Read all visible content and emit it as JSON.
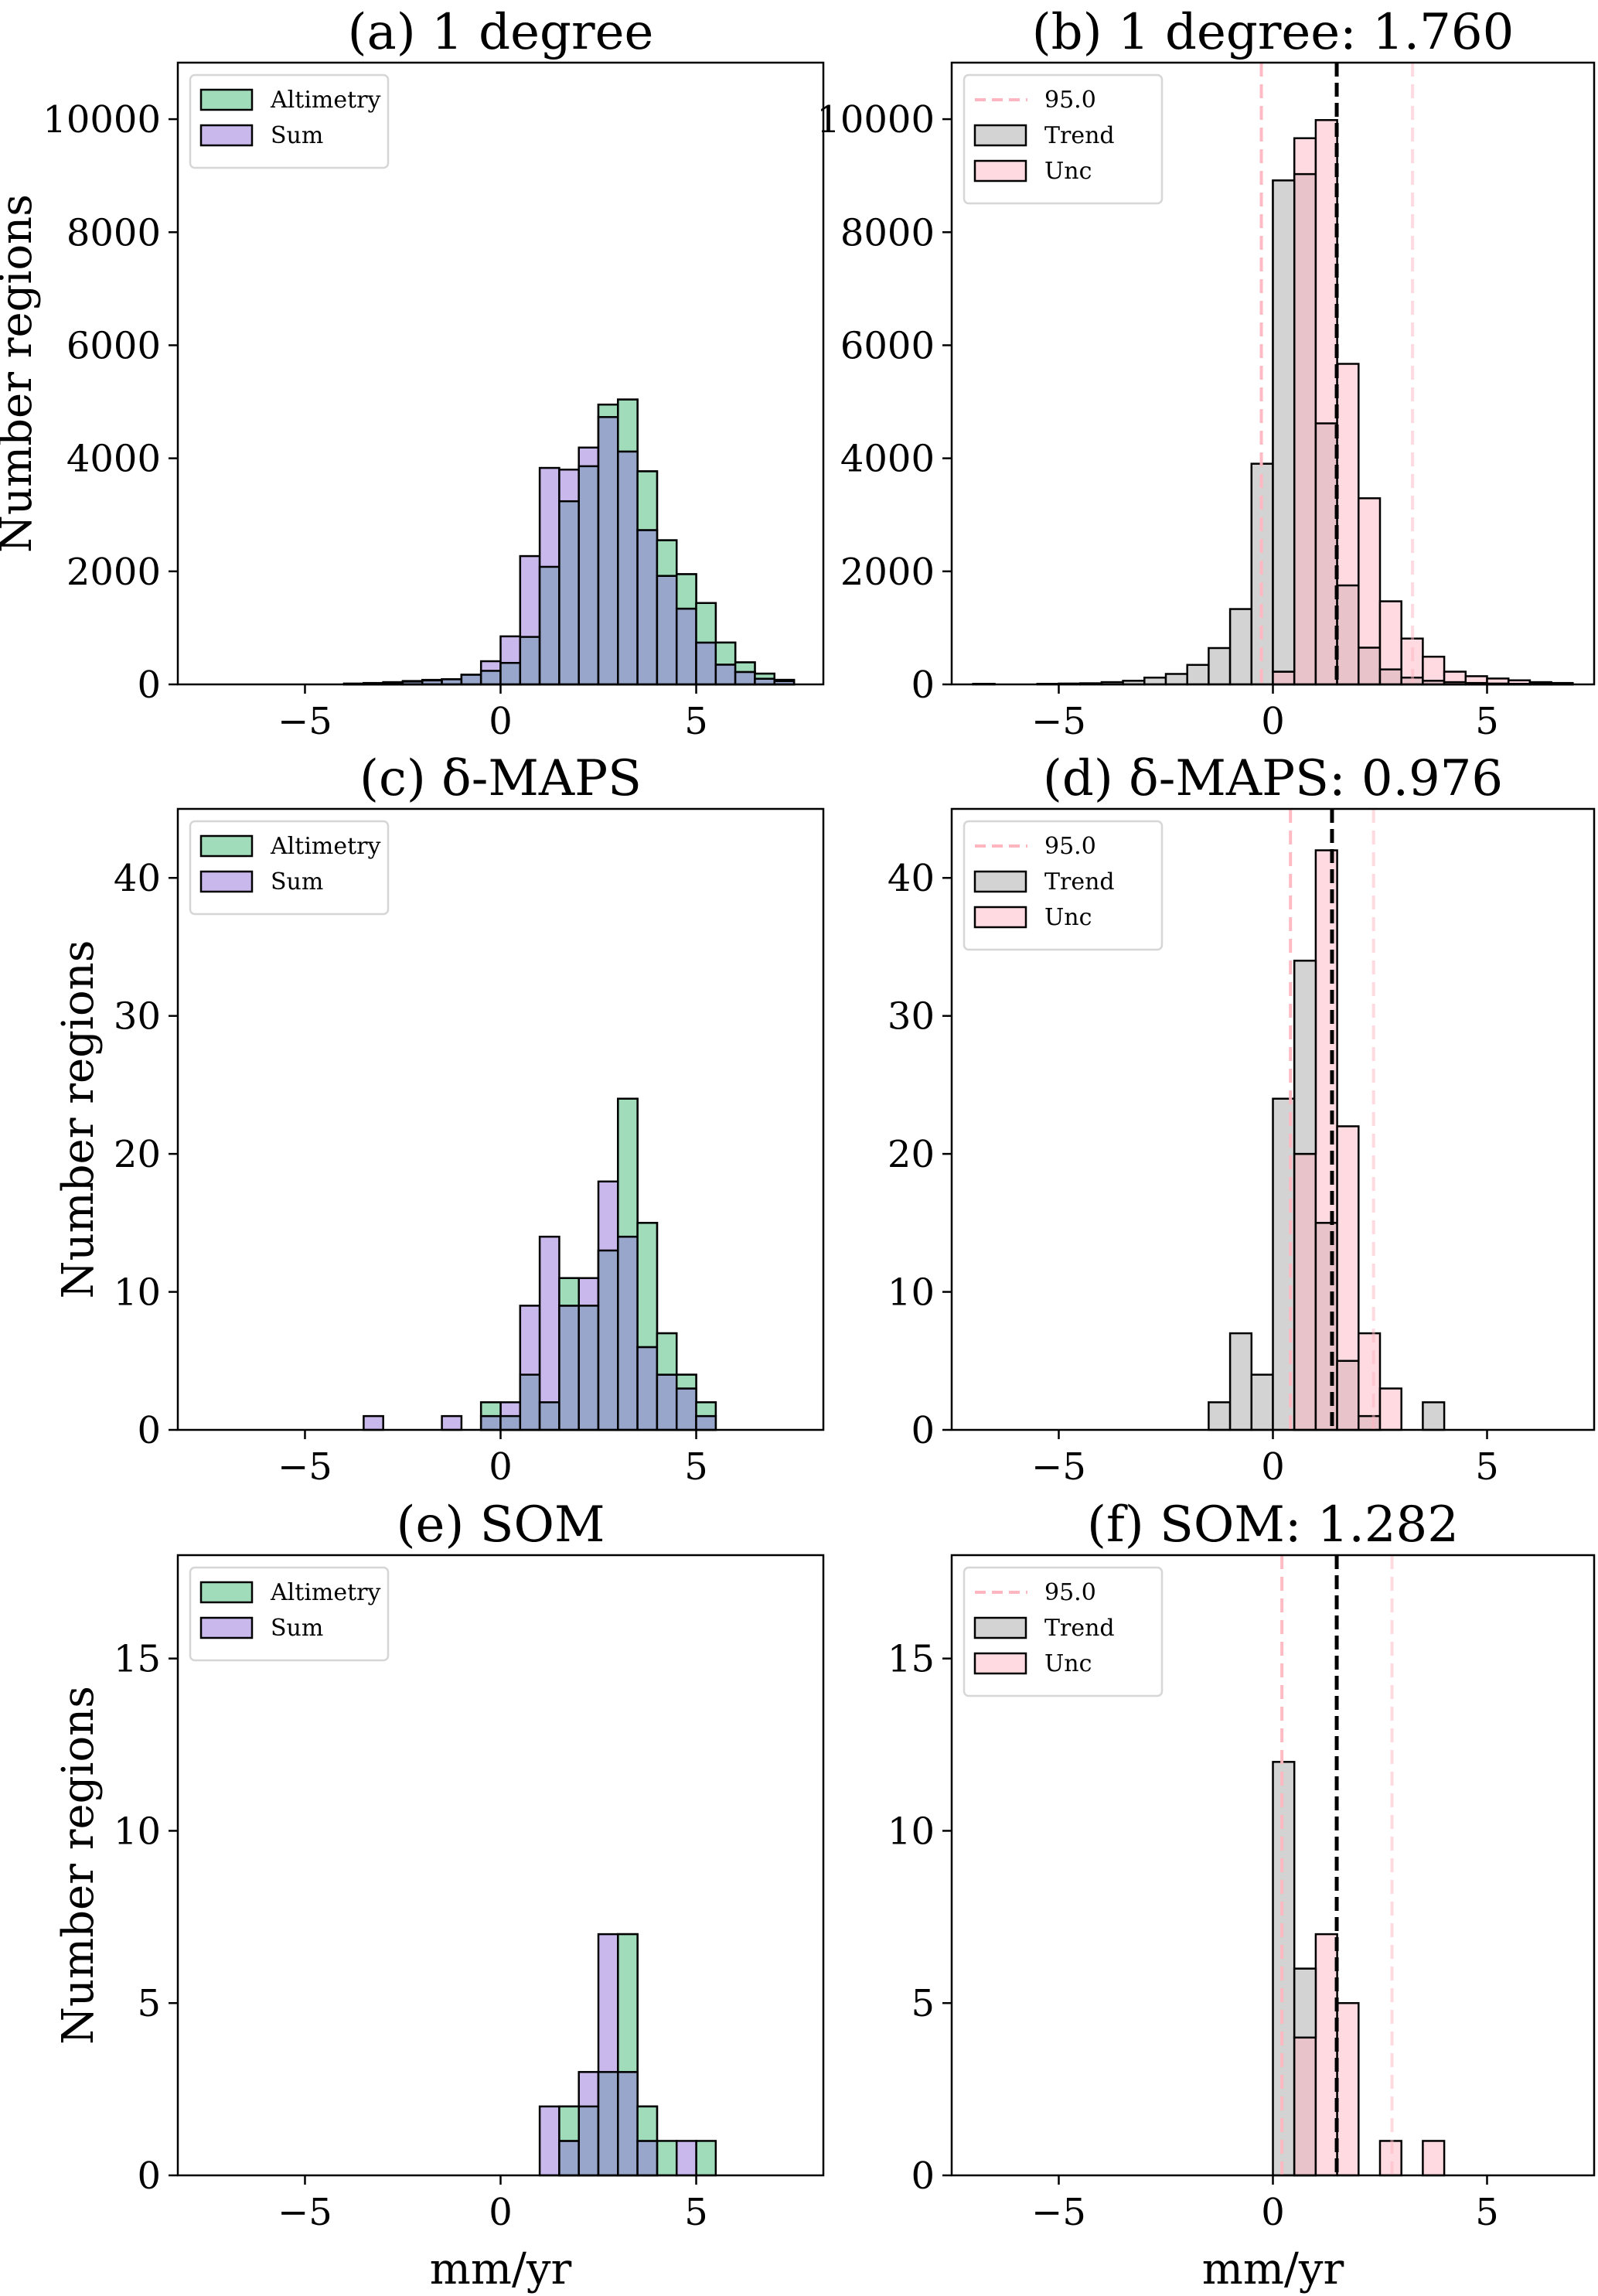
{
  "figure": {
    "colors": {
      "altimetry": "#a0dcb9",
      "sum": "#c9b8ec",
      "overlap_alt_sum": "#98a6cb",
      "trend": "#d3d3d3",
      "unc": "#ffdbe1",
      "overlap_trend_unc": "#e8c4ca",
      "ci_line": "#ffb6c1",
      "mean_line": "#000000",
      "edge": "#000000"
    }
  },
  "chart_data": [
    {
      "id": "a",
      "type": "bar",
      "subtype": "overlapping-histogram",
      "title": "(a)  1 degree",
      "xlabel": "",
      "ylabel": "Number regions",
      "xlim": [
        -8.25,
        8.25
      ],
      "ylim": [
        0,
        11000
      ],
      "xticks": [
        -5,
        0,
        5
      ],
      "xtick_labels": [
        "−5",
        "0",
        "5"
      ],
      "yticks": [
        0,
        2000,
        4000,
        6000,
        8000,
        10000
      ],
      "ytick_labels": [
        "0",
        "2000",
        "4000",
        "6000",
        "8000",
        "10000"
      ],
      "bin_width": 0.5,
      "grid": false,
      "legend": {
        "placement": "top-left",
        "entries": [
          {
            "label": "Altimetry",
            "kind": "patch",
            "color_key": "altimetry"
          },
          {
            "label": "Sum",
            "kind": "patch",
            "color_key": "sum"
          }
        ]
      },
      "series": [
        {
          "name": "Altimetry",
          "color_key": "altimetry",
          "bin_starts": [
            -4.0,
            -3.5,
            -3.0,
            -2.5,
            -2.0,
            -1.5,
            -1.0,
            -0.5,
            0.0,
            0.5,
            1.0,
            1.5,
            2.0,
            2.5,
            3.0,
            3.5,
            4.0,
            4.5,
            5.0,
            5.5,
            6.0,
            6.5,
            7.0
          ],
          "values": [
            10,
            20,
            30,
            50,
            70,
            90,
            170,
            240,
            380,
            840,
            2080,
            3240,
            3860,
            4950,
            5040,
            3770,
            2550,
            1950,
            1440,
            740,
            390,
            190,
            80
          ]
        },
        {
          "name": "Sum",
          "color_key": "sum",
          "bin_starts": [
            -4.0,
            -3.5,
            -3.0,
            -2.5,
            -2.0,
            -1.5,
            -1.0,
            -0.5,
            0.0,
            0.5,
            1.0,
            1.5,
            2.0,
            2.5,
            3.0,
            3.5,
            4.0,
            4.5,
            5.0,
            5.5,
            6.0,
            6.5,
            7.0
          ],
          "values": [
            15,
            25,
            40,
            60,
            80,
            90,
            170,
            410,
            850,
            2270,
            3830,
            3800,
            4190,
            4730,
            4120,
            2730,
            1920,
            1340,
            740,
            350,
            220,
            100,
            60
          ]
        }
      ]
    },
    {
      "id": "b",
      "type": "bar",
      "subtype": "overlapping-histogram",
      "title": "(b)  1 degree: 1.760",
      "xlabel": "",
      "ylabel": "",
      "xlim": [
        -7.5,
        7.5
      ],
      "ylim": [
        0,
        11000
      ],
      "xticks": [
        -5,
        0,
        5
      ],
      "xtick_labels": [
        "−5",
        "0",
        "5"
      ],
      "yticks": [
        0,
        2000,
        4000,
        6000,
        8000,
        10000
      ],
      "ytick_labels": [
        "0",
        "2000",
        "4000",
        "6000",
        "8000",
        "10000"
      ],
      "bin_width": 0.5,
      "grid": false,
      "vlines": {
        "ci_lower": -0.27,
        "mean": 1.49,
        "ci_upper": 3.26
      },
      "legend": {
        "placement": "top-left",
        "entries": [
          {
            "label": "95.0",
            "kind": "dashed-line",
            "color_key": "ci_line"
          },
          {
            "label": "Trend",
            "kind": "patch",
            "color_key": "trend"
          },
          {
            "label": "Unc",
            "kind": "patch",
            "color_key": "unc"
          }
        ]
      },
      "series": [
        {
          "name": "Trend",
          "color_key": "trend",
          "bin_starts": [
            -7.0,
            -5.5,
            -5.0,
            -4.5,
            -4.0,
            -3.5,
            -3.0,
            -2.5,
            -2.0,
            -1.5,
            -1.0,
            -0.5,
            0.0,
            0.5,
            1.0,
            1.5,
            2.0,
            2.5,
            3.0,
            3.5,
            4.0,
            4.5,
            5.0,
            5.5,
            6.0,
            6.5
          ],
          "values": [
            10,
            10,
            15,
            20,
            40,
            64,
            120,
            185,
            345,
            643,
            1333,
            3904,
            8916,
            9028,
            4618,
            1751,
            650,
            265,
            120,
            64,
            40,
            25,
            15,
            10,
            10,
            10
          ]
        },
        {
          "name": "Unc",
          "color_key": "unc",
          "bin_starts": [
            0.0,
            0.5,
            1.0,
            1.5,
            2.0,
            2.5,
            3.0,
            3.5,
            4.0,
            4.5,
            5.0,
            5.5,
            6.0,
            6.5
          ],
          "values": [
            225,
            9663,
            9984,
            5671,
            3293,
            1470,
            811,
            490,
            225,
            145,
            104,
            72,
            40,
            25
          ]
        }
      ]
    },
    {
      "id": "c",
      "type": "bar",
      "subtype": "overlapping-histogram",
      "title": "(c)  δ-MAPS",
      "xlabel": "",
      "ylabel": "Number regions",
      "xlim": [
        -8.25,
        8.25
      ],
      "ylim": [
        0,
        45
      ],
      "xticks": [
        -5,
        0,
        5
      ],
      "xtick_labels": [
        "−5",
        "0",
        "5"
      ],
      "yticks": [
        0,
        10,
        20,
        30,
        40
      ],
      "ytick_labels": [
        "0",
        "10",
        "20",
        "30",
        "40"
      ],
      "bin_width": 0.5,
      "grid": false,
      "legend": {
        "placement": "top-left",
        "entries": [
          {
            "label": "Altimetry",
            "kind": "patch",
            "color_key": "altimetry"
          },
          {
            "label": "Sum",
            "kind": "patch",
            "color_key": "sum"
          }
        ]
      },
      "series": [
        {
          "name": "Altimetry",
          "color_key": "altimetry",
          "bin_starts": [
            -0.5,
            0.0,
            0.5,
            1.0,
            1.5,
            2.0,
            2.5,
            3.0,
            3.5,
            4.0,
            4.5,
            5.0
          ],
          "values": [
            2,
            1,
            4,
            2,
            11,
            9,
            13,
            24,
            15,
            7,
            4,
            2
          ]
        },
        {
          "name": "Sum",
          "color_key": "sum",
          "bin_starts": [
            -3.5,
            -1.5,
            -0.5,
            0.0,
            0.5,
            1.0,
            1.5,
            2.0,
            2.5,
            3.0,
            3.5,
            4.0,
            4.5,
            5.0
          ],
          "values": [
            1,
            1,
            1,
            2,
            9,
            14,
            9,
            11,
            18,
            14,
            6,
            4,
            3,
            1
          ]
        }
      ]
    },
    {
      "id": "d",
      "type": "bar",
      "subtype": "overlapping-histogram",
      "title": "(d)  δ-MAPS: 0.976",
      "xlabel": "",
      "ylabel": "",
      "xlim": [
        -7.5,
        7.5
      ],
      "ylim": [
        0,
        45
      ],
      "xticks": [
        -5,
        0,
        5
      ],
      "xtick_labels": [
        "−5",
        "0",
        "5"
      ],
      "yticks": [
        0,
        10,
        20,
        30,
        40
      ],
      "ytick_labels": [
        "0",
        "10",
        "20",
        "30",
        "40"
      ],
      "bin_width": 0.5,
      "grid": false,
      "vlines": {
        "ci_lower": 0.41,
        "mean": 1.38,
        "ci_upper": 2.35
      },
      "legend": {
        "placement": "top-left",
        "entries": [
          {
            "label": "95.0",
            "kind": "dashed-line",
            "color_key": "ci_line"
          },
          {
            "label": "Trend",
            "kind": "patch",
            "color_key": "trend"
          },
          {
            "label": "Unc",
            "kind": "patch",
            "color_key": "unc"
          }
        ]
      },
      "series": [
        {
          "name": "Trend",
          "color_key": "trend",
          "bin_starts": [
            -1.5,
            -1.0,
            -0.5,
            0.0,
            0.5,
            1.0,
            1.5,
            2.0,
            3.5
          ],
          "values": [
            2,
            7,
            4,
            24,
            34,
            15,
            5,
            1,
            2
          ]
        },
        {
          "name": "Unc",
          "color_key": "unc",
          "bin_starts": [
            0.5,
            1.0,
            1.5,
            2.0,
            2.5
          ],
          "values": [
            20,
            42,
            22,
            7,
            3
          ]
        }
      ]
    },
    {
      "id": "e",
      "type": "bar",
      "subtype": "overlapping-histogram",
      "title": "(e)  SOM",
      "xlabel": "mm/yr",
      "ylabel": "Number regions",
      "xlim": [
        -8.25,
        8.25
      ],
      "ylim": [
        0,
        18
      ],
      "xticks": [
        -5,
        0,
        5
      ],
      "xtick_labels": [
        "−5",
        "0",
        "5"
      ],
      "yticks": [
        0,
        5,
        10,
        15
      ],
      "ytick_labels": [
        "0",
        "5",
        "10",
        "15"
      ],
      "bin_width": 0.5,
      "grid": false,
      "legend": {
        "placement": "top-left",
        "entries": [
          {
            "label": "Altimetry",
            "kind": "patch",
            "color_key": "altimetry"
          },
          {
            "label": "Sum",
            "kind": "patch",
            "color_key": "sum"
          }
        ]
      },
      "series": [
        {
          "name": "Altimetry",
          "color_key": "altimetry",
          "bin_starts": [
            1.5,
            2.0,
            2.5,
            3.0,
            3.5,
            4.0,
            5.0
          ],
          "values": [
            2,
            2,
            3,
            7,
            2,
            1,
            1
          ]
        },
        {
          "name": "Sum",
          "color_key": "sum",
          "bin_starts": [
            1.0,
            1.5,
            2.0,
            2.5,
            3.0,
            3.5,
            4.5
          ],
          "values": [
            2,
            1,
            3,
            7,
            3,
            1,
            1
          ]
        }
      ]
    },
    {
      "id": "f",
      "type": "bar",
      "subtype": "overlapping-histogram",
      "title": "(f)  SOM: 1.282",
      "xlabel": "mm/yr",
      "ylabel": "",
      "xlim": [
        -7.5,
        7.5
      ],
      "ylim": [
        0,
        18
      ],
      "xticks": [
        -5,
        0,
        5
      ],
      "xtick_labels": [
        "−5",
        "0",
        "5"
      ],
      "yticks": [
        0,
        5,
        10,
        15
      ],
      "ytick_labels": [
        "0",
        "5",
        "10",
        "15"
      ],
      "bin_width": 0.5,
      "grid": false,
      "vlines": {
        "ci_lower": 0.21,
        "mean": 1.49,
        "ci_upper": 2.78
      },
      "legend": {
        "placement": "top-left",
        "entries": [
          {
            "label": "95.0",
            "kind": "dashed-line",
            "color_key": "ci_line"
          },
          {
            "label": "Trend",
            "kind": "patch",
            "color_key": "trend"
          },
          {
            "label": "Unc",
            "kind": "patch",
            "color_key": "unc"
          }
        ]
      },
      "series": [
        {
          "name": "Trend",
          "color_key": "trend",
          "bin_starts": [
            0.0,
            0.5
          ],
          "values": [
            12,
            6
          ]
        },
        {
          "name": "Unc",
          "color_key": "unc",
          "bin_starts": [
            0.5,
            1.0,
            1.5,
            2.5,
            3.5
          ],
          "values": [
            4,
            7,
            5,
            1,
            1
          ]
        }
      ]
    }
  ]
}
